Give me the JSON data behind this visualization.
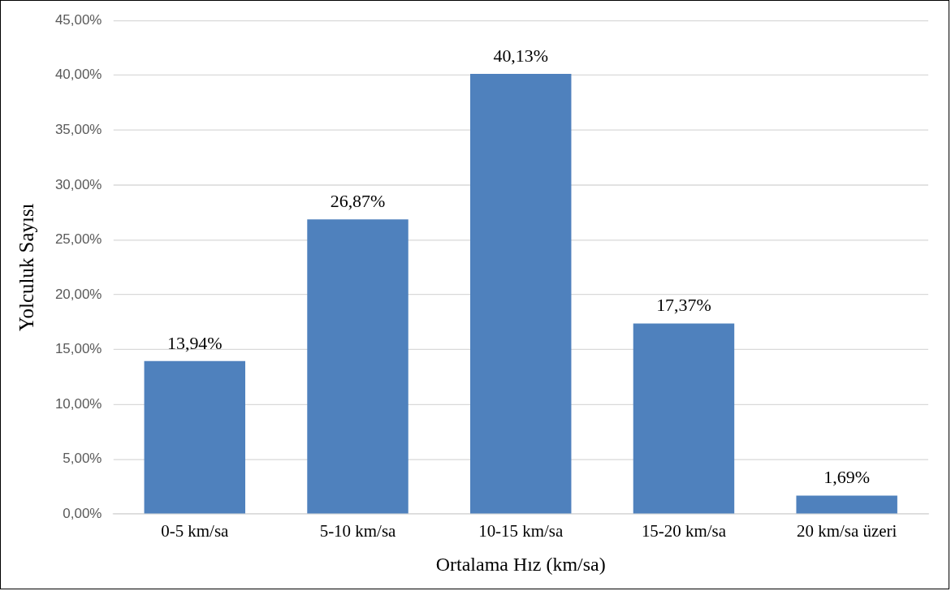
{
  "chart_data": {
    "type": "bar",
    "xlabel": "Ortalama Hız (km/sa)",
    "ylabel": "Yolculuk Sayısı",
    "categories": [
      "0-5 km/sa",
      "5-10 km/sa",
      "10-15 km/sa",
      "15-20 km/sa",
      "20 km/sa üzeri"
    ],
    "values": [
      13.94,
      26.87,
      40.13,
      17.37,
      1.69
    ],
    "value_labels": [
      "13,94%",
      "26,87%",
      "40,13%",
      "17,37%",
      "1,69%"
    ],
    "color": "#4f81bd",
    "ylim": [
      0,
      45
    ],
    "yticks": [
      {
        "value": 0,
        "label": "0,00%"
      },
      {
        "value": 5,
        "label": "5,00%"
      },
      {
        "value": 10,
        "label": "10,00%"
      },
      {
        "value": 15,
        "label": "15,00%"
      },
      {
        "value": 20,
        "label": "20,00%"
      },
      {
        "value": 25,
        "label": "25,00%"
      },
      {
        "value": 30,
        "label": "30,00%"
      },
      {
        "value": 35,
        "label": "35,00%"
      },
      {
        "value": 40,
        "label": "40,00%"
      },
      {
        "value": 45,
        "label": "45,00%"
      }
    ],
    "grid": "y",
    "legend": false
  }
}
